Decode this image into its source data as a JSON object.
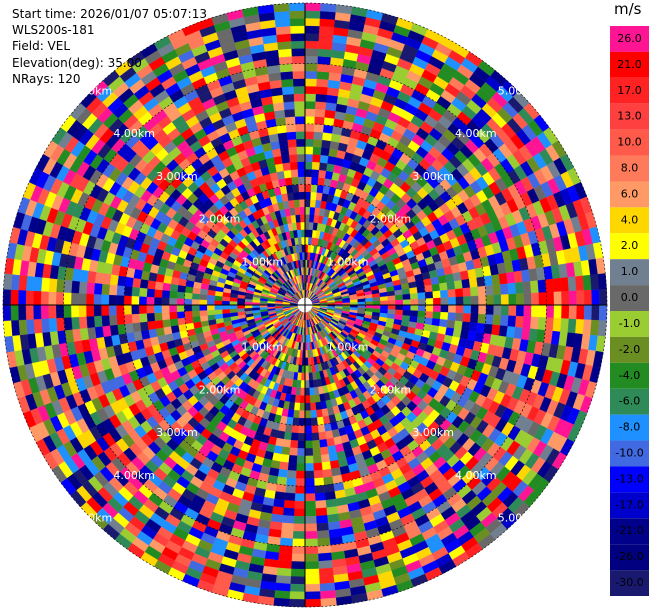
{
  "info": {
    "start_time": "Start time: 2026/01/07 05:07:13",
    "site": "WLS200s-181",
    "field": "Field: VEL",
    "elevation": "Elevation(deg): 35.00",
    "nrays": "NRays: 120"
  },
  "colorbar": {
    "unit": "m/s",
    "bins": [
      {
        "label": "26.0",
        "color": "#ff1493"
      },
      {
        "label": "21.0",
        "color": "#ff0000"
      },
      {
        "label": "17.0",
        "color": "#ff2222"
      },
      {
        "label": "13.0",
        "color": "#ff4040"
      },
      {
        "label": "10.0",
        "color": "#ff5a4a"
      },
      {
        "label": "8.0",
        "color": "#ff7a5a"
      },
      {
        "label": "6.0",
        "color": "#ff9a66"
      },
      {
        "label": "4.0",
        "color": "#ffd700"
      },
      {
        "label": "2.0",
        "color": "#ffff00"
      },
      {
        "label": "1.0",
        "color": "#708090"
      },
      {
        "label": "0.0",
        "color": "#696969"
      },
      {
        "label": "-1.0",
        "color": "#9acd32"
      },
      {
        "label": "-2.0",
        "color": "#6b8e23"
      },
      {
        "label": "-4.0",
        "color": "#228b22"
      },
      {
        "label": "-6.0",
        "color": "#2e8b57"
      },
      {
        "label": "-8.0",
        "color": "#1e90ff"
      },
      {
        "label": "-10.0",
        "color": "#4169e1"
      },
      {
        "label": "-13.0",
        "color": "#0000ff"
      },
      {
        "label": "-17.0",
        "color": "#0000cd"
      },
      {
        "label": "-21.0",
        "color": "#00008b"
      },
      {
        "label": "-26.0",
        "color": "#000080"
      },
      {
        "label": "-30.0",
        "color": "#191970"
      }
    ]
  },
  "chart_data": {
    "type": "heatmap",
    "projection": "polar-ppi",
    "field": "VEL",
    "unit": "m/s",
    "elevation_deg": 35.0,
    "nrays": 120,
    "range_rings_km": [
      1,
      2,
      3,
      4,
      5
    ],
    "ring_labels": [
      "1.00km",
      "2.00km",
      "3.00km",
      "4.00km",
      "5.00km"
    ],
    "values_note": "dense noisy velocity field, values span -30 to 26 m/s",
    "vmin": -30,
    "vmax": 26
  }
}
